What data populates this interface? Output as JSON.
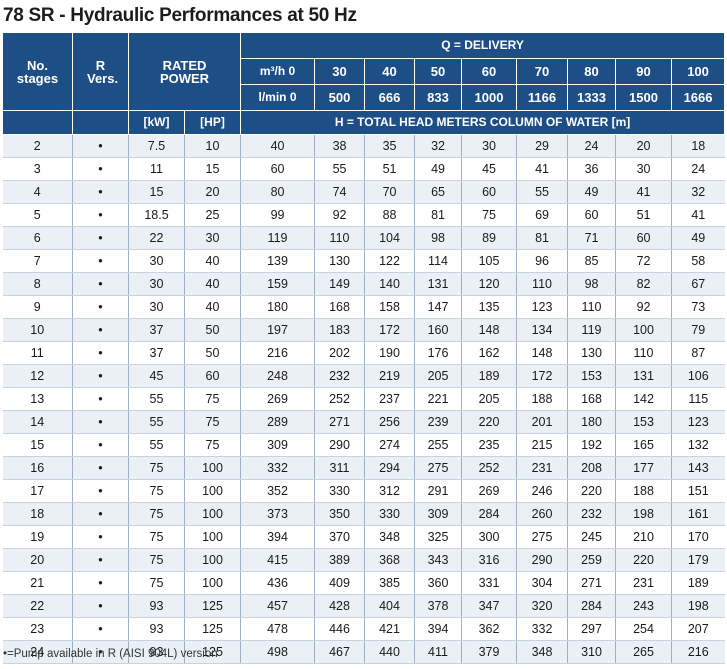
{
  "title": "78 SR - Hydraulic Performances at 50 Hz",
  "header": {
    "no_stages": "No. stages",
    "r_vers": "R Vers.",
    "rated_power": "RATED POWER",
    "delivery": "Q = DELIVERY",
    "flow_m3h_label": "m³/h 0",
    "flow_lmin_label": "l/min 0",
    "kw": "[kW]",
    "hp": "[HP]",
    "head": "H = TOTAL HEAD METERS COLUMN OF WATER [m]",
    "flow_m3h": [
      "30",
      "40",
      "50",
      "60",
      "70",
      "80",
      "90",
      "100"
    ],
    "flow_lmin": [
      "500",
      "666",
      "833",
      "1000",
      "1166",
      "1333",
      "1500",
      "1666"
    ]
  },
  "rows": [
    [
      "2",
      "•",
      "7.5",
      "10",
      "40",
      "38",
      "35",
      "32",
      "30",
      "29",
      "24",
      "20",
      "18"
    ],
    [
      "3",
      "•",
      "11",
      "15",
      "60",
      "55",
      "51",
      "49",
      "45",
      "41",
      "36",
      "30",
      "24"
    ],
    [
      "4",
      "•",
      "15",
      "20",
      "80",
      "74",
      "70",
      "65",
      "60",
      "55",
      "49",
      "41",
      "32"
    ],
    [
      "5",
      "•",
      "18.5",
      "25",
      "99",
      "92",
      "88",
      "81",
      "75",
      "69",
      "60",
      "51",
      "41"
    ],
    [
      "6",
      "•",
      "22",
      "30",
      "119",
      "110",
      "104",
      "98",
      "89",
      "81",
      "71",
      "60",
      "49"
    ],
    [
      "7",
      "•",
      "30",
      "40",
      "139",
      "130",
      "122",
      "114",
      "105",
      "96",
      "85",
      "72",
      "58"
    ],
    [
      "8",
      "•",
      "30",
      "40",
      "159",
      "149",
      "140",
      "131",
      "120",
      "110",
      "98",
      "82",
      "67"
    ],
    [
      "9",
      "•",
      "30",
      "40",
      "180",
      "168",
      "158",
      "147",
      "135",
      "123",
      "110",
      "92",
      "73"
    ],
    [
      "10",
      "•",
      "37",
      "50",
      "197",
      "183",
      "172",
      "160",
      "148",
      "134",
      "119",
      "100",
      "79"
    ],
    [
      "11",
      "•",
      "37",
      "50",
      "216",
      "202",
      "190",
      "176",
      "162",
      "148",
      "130",
      "110",
      "87"
    ],
    [
      "12",
      "•",
      "45",
      "60",
      "248",
      "232",
      "219",
      "205",
      "189",
      "172",
      "153",
      "131",
      "106"
    ],
    [
      "13",
      "•",
      "55",
      "75",
      "269",
      "252",
      "237",
      "221",
      "205",
      "188",
      "168",
      "142",
      "115"
    ],
    [
      "14",
      "•",
      "55",
      "75",
      "289",
      "271",
      "256",
      "239",
      "220",
      "201",
      "180",
      "153",
      "123"
    ],
    [
      "15",
      "•",
      "55",
      "75",
      "309",
      "290",
      "274",
      "255",
      "235",
      "215",
      "192",
      "165",
      "132"
    ],
    [
      "16",
      "•",
      "75",
      "100",
      "332",
      "311",
      "294",
      "275",
      "252",
      "231",
      "208",
      "177",
      "143"
    ],
    [
      "17",
      "•",
      "75",
      "100",
      "352",
      "330",
      "312",
      "291",
      "269",
      "246",
      "220",
      "188",
      "151"
    ],
    [
      "18",
      "•",
      "75",
      "100",
      "373",
      "350",
      "330",
      "309",
      "284",
      "260",
      "232",
      "198",
      "161"
    ],
    [
      "19",
      "•",
      "75",
      "100",
      "394",
      "370",
      "348",
      "325",
      "300",
      "275",
      "245",
      "210",
      "170"
    ],
    [
      "20",
      "•",
      "75",
      "100",
      "415",
      "389",
      "368",
      "343",
      "316",
      "290",
      "259",
      "220",
      "179"
    ],
    [
      "21",
      "•",
      "75",
      "100",
      "436",
      "409",
      "385",
      "360",
      "331",
      "304",
      "271",
      "231",
      "189"
    ],
    [
      "22",
      "•",
      "93",
      "125",
      "457",
      "428",
      "404",
      "378",
      "347",
      "320",
      "284",
      "243",
      "198"
    ],
    [
      "23",
      "•",
      "93",
      "125",
      "478",
      "446",
      "421",
      "394",
      "362",
      "332",
      "297",
      "254",
      "207"
    ],
    [
      "24",
      "•",
      "93",
      "125",
      "498",
      "467",
      "440",
      "411",
      "379",
      "348",
      "310",
      "265",
      "216"
    ]
  ],
  "footnote": "•=Pump available in R (AISI 904L) version",
  "colors": {
    "header_bg": "#1d4f86",
    "stripe_bg": "#ebf0f6"
  }
}
